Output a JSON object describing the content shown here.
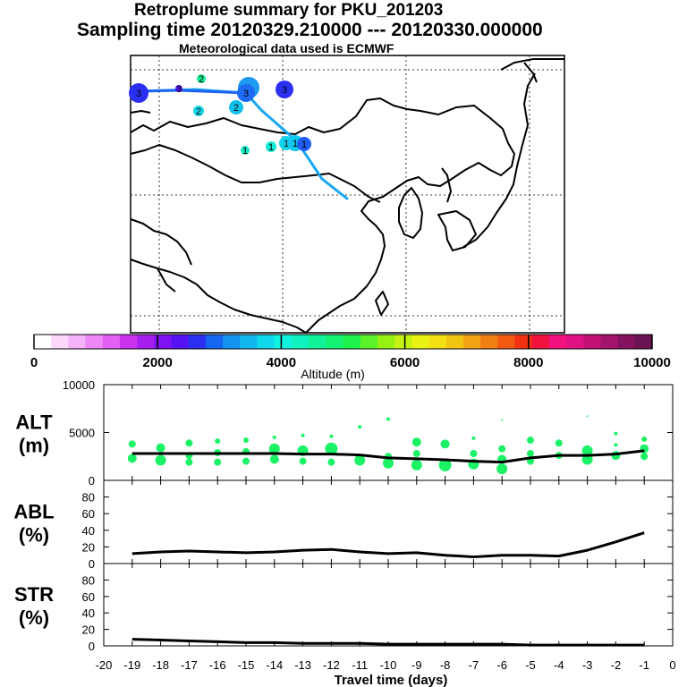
{
  "header": {
    "title": "Retroplume summary for PKU_201203",
    "sampling": "Sampling time   20120329.210000 --- 20120330.000000",
    "met": "Meteorological data used is ECMWF"
  },
  "colorbar": {
    "ticks": [
      "0",
      "2000",
      "4000",
      "6000",
      "8000",
      "10000"
    ],
    "label": "Altitude (m)",
    "colors": [
      "#ffffff",
      "#fbd7fb",
      "#f4b2f8",
      "#ee88f6",
      "#e35ef2",
      "#cc33ee",
      "#a61fee",
      "#7f12f2",
      "#5512f2",
      "#2b2ff2",
      "#1566f2",
      "#1493f0",
      "#10b7ef",
      "#0fd8ec",
      "#0ff2e0",
      "#10f2bf",
      "#12f299",
      "#14f274",
      "#1ff24d",
      "#5cf22a",
      "#95f212",
      "#c4f212",
      "#e9f212",
      "#f2e012",
      "#f2c412",
      "#f2a412",
      "#f27f12",
      "#f25a12",
      "#f23012",
      "#f21240",
      "#f2127f",
      "#e01283",
      "#c21278",
      "#a3126b",
      "#85125f",
      "#6a1252"
    ]
  },
  "map": {
    "markers": [
      {
        "label": "1",
        "color": "#14e8c4"
      },
      {
        "label": "1",
        "color": "#12e8d4"
      },
      {
        "label": "1",
        "color": "#10d4ec"
      },
      {
        "label": "1",
        "color": "#12c8ef"
      },
      {
        "label": "1",
        "color": "#1e5cf2"
      },
      {
        "label": "2",
        "color": "#10c0ef"
      },
      {
        "label": "2",
        "color": "#12d8ec"
      },
      {
        "label": "2",
        "color": "#1f9af2"
      },
      {
        "label": "2",
        "color": "#12f299"
      },
      {
        "label": "3",
        "color": "#2b2ff2"
      },
      {
        "label": "3",
        "color": "#2b2ff2"
      },
      {
        "label": "3",
        "color": "#5512f2"
      },
      {
        "label": "3",
        "color": "#1f6af2"
      }
    ]
  },
  "panels": {
    "alt": {
      "label1": "ALT",
      "label2": "(m)",
      "yticks": [
        "10000",
        "5000",
        "0"
      ]
    },
    "abl": {
      "label1": "ABL",
      "label2": "(%)",
      "yticks": [
        "80",
        "60",
        "40",
        "20",
        "0"
      ]
    },
    "str": {
      "label1": "STR",
      "label2": "(%)",
      "yticks": [
        "80",
        "60",
        "40",
        "20",
        "0"
      ]
    },
    "xticks": [
      "-20",
      "-19",
      "-18",
      "-17",
      "-16",
      "-15",
      "-14",
      "-13",
      "-12",
      "-11",
      "-10",
      "-9",
      "-8",
      "-7",
      "-6",
      "-5",
      "-4",
      "-3",
      "-2",
      "-1",
      "0"
    ],
    "xlabel": "Travel time (days)"
  },
  "chart_data": [
    {
      "type": "line",
      "title": "ALT",
      "ylabel": "ALT (m)",
      "xlabel": "Travel time (days)",
      "xlim": [
        -20,
        0
      ],
      "ylim": [
        0,
        10000
      ],
      "x": [
        -19,
        -18,
        -17,
        -16,
        -15,
        -14,
        -13,
        -12,
        -11,
        -10,
        -9,
        -8,
        -7,
        -6,
        -5,
        -4,
        -3,
        -2,
        -1
      ],
      "series": [
        {
          "name": "mean altitude",
          "values": [
            2800,
            2800,
            2800,
            2800,
            2800,
            2800,
            2750,
            2750,
            2650,
            2350,
            2250,
            2150,
            2000,
            1900,
            2350,
            2600,
            2600,
            2750,
            3100
          ]
        }
      ],
      "scatter": [
        {
          "x": -19,
          "y": 3800,
          "s": 4
        },
        {
          "x": -19,
          "y": 2300,
          "s": 5
        },
        {
          "x": -18,
          "y": 3400,
          "s": 5
        },
        {
          "x": -18,
          "y": 2100,
          "s": 6
        },
        {
          "x": -17,
          "y": 3900,
          "s": 4
        },
        {
          "x": -17,
          "y": 2600,
          "s": 4
        },
        {
          "x": -17,
          "y": 1900,
          "s": 4
        },
        {
          "x": -16,
          "y": 4100,
          "s": 3
        },
        {
          "x": -16,
          "y": 2900,
          "s": 4
        },
        {
          "x": -16,
          "y": 1900,
          "s": 4
        },
        {
          "x": -15,
          "y": 4200,
          "s": 3
        },
        {
          "x": -15,
          "y": 3000,
          "s": 4
        },
        {
          "x": -15,
          "y": 2000,
          "s": 4
        },
        {
          "x": -14,
          "y": 4500,
          "s": 2
        },
        {
          "x": -14,
          "y": 3300,
          "s": 6
        },
        {
          "x": -14,
          "y": 2200,
          "s": 5
        },
        {
          "x": -13,
          "y": 4700,
          "s": 2
        },
        {
          "x": -13,
          "y": 3100,
          "s": 6
        },
        {
          "x": -13,
          "y": 2000,
          "s": 4
        },
        {
          "x": -12,
          "y": 4600,
          "s": 2
        },
        {
          "x": -12,
          "y": 3300,
          "s": 7
        },
        {
          "x": -12,
          "y": 1900,
          "s": 4
        },
        {
          "x": -11,
          "y": 5600,
          "s": 2
        },
        {
          "x": -11,
          "y": 2100,
          "s": 6
        },
        {
          "x": -10,
          "y": 6400,
          "s": 2
        },
        {
          "x": -10,
          "y": 2500,
          "s": 4
        },
        {
          "x": -10,
          "y": 1800,
          "s": 6
        },
        {
          "x": -9,
          "y": 4000,
          "s": 5
        },
        {
          "x": -9,
          "y": 2800,
          "s": 4
        },
        {
          "x": -9,
          "y": 1600,
          "s": 6
        },
        {
          "x": -8,
          "y": 3800,
          "s": 5
        },
        {
          "x": -8,
          "y": 1600,
          "s": 7
        },
        {
          "x": -7,
          "y": 4400,
          "s": 2
        },
        {
          "x": -7,
          "y": 2800,
          "s": 4
        },
        {
          "x": -7,
          "y": 1700,
          "s": 6
        },
        {
          "x": -6,
          "y": 6300,
          "s": 1
        },
        {
          "x": -6,
          "y": 3300,
          "s": 4
        },
        {
          "x": -6,
          "y": 2200,
          "s": 5
        },
        {
          "x": -6,
          "y": 1200,
          "s": 6
        },
        {
          "x": -5,
          "y": 4200,
          "s": 4
        },
        {
          "x": -5,
          "y": 2800,
          "s": 4
        },
        {
          "x": -5,
          "y": 2000,
          "s": 4
        },
        {
          "x": -4,
          "y": 3900,
          "s": 4
        },
        {
          "x": -4,
          "y": 2600,
          "s": 4
        },
        {
          "x": -3,
          "y": 6700,
          "s": 1
        },
        {
          "x": -3,
          "y": 3100,
          "s": 6
        },
        {
          "x": -3,
          "y": 2200,
          "s": 6
        },
        {
          "x": -2,
          "y": 4900,
          "s": 2
        },
        {
          "x": -2,
          "y": 3700,
          "s": 2
        },
        {
          "x": -2,
          "y": 2600,
          "s": 5
        },
        {
          "x": -1,
          "y": 4300,
          "s": 3
        },
        {
          "x": -1,
          "y": 3300,
          "s": 5
        },
        {
          "x": -1,
          "y": 2500,
          "s": 4
        }
      ]
    },
    {
      "type": "line",
      "title": "ABL",
      "ylabel": "ABL (%)",
      "xlabel": "Travel time (days)",
      "xlim": [
        -20,
        0
      ],
      "ylim": [
        0,
        100
      ],
      "x": [
        -19,
        -18,
        -17,
        -16,
        -15,
        -14,
        -13,
        -12,
        -11,
        -10,
        -9,
        -8,
        -7,
        -6,
        -5,
        -4,
        -3,
        -2,
        -1
      ],
      "series": [
        {
          "name": "ABL",
          "values": [
            12,
            14,
            15,
            14,
            13,
            14,
            16,
            17,
            14,
            12,
            13,
            10,
            8,
            10,
            10,
            9,
            16,
            26,
            37
          ]
        }
      ]
    },
    {
      "type": "line",
      "title": "STR",
      "ylabel": "STR (%)",
      "xlabel": "Travel time (days)",
      "xlim": [
        -20,
        0
      ],
      "ylim": [
        0,
        100
      ],
      "x": [
        -19,
        -18,
        -17,
        -16,
        -15,
        -14,
        -13,
        -12,
        -11,
        -10,
        -9,
        -8,
        -7,
        -6,
        -5,
        -4,
        -3,
        -2,
        -1
      ],
      "series": [
        {
          "name": "STR",
          "values": [
            8,
            7,
            6,
            5,
            4,
            4,
            3,
            3,
            3,
            2,
            2,
            2,
            2,
            2,
            1,
            1,
            1,
            1,
            1
          ]
        }
      ]
    }
  ]
}
